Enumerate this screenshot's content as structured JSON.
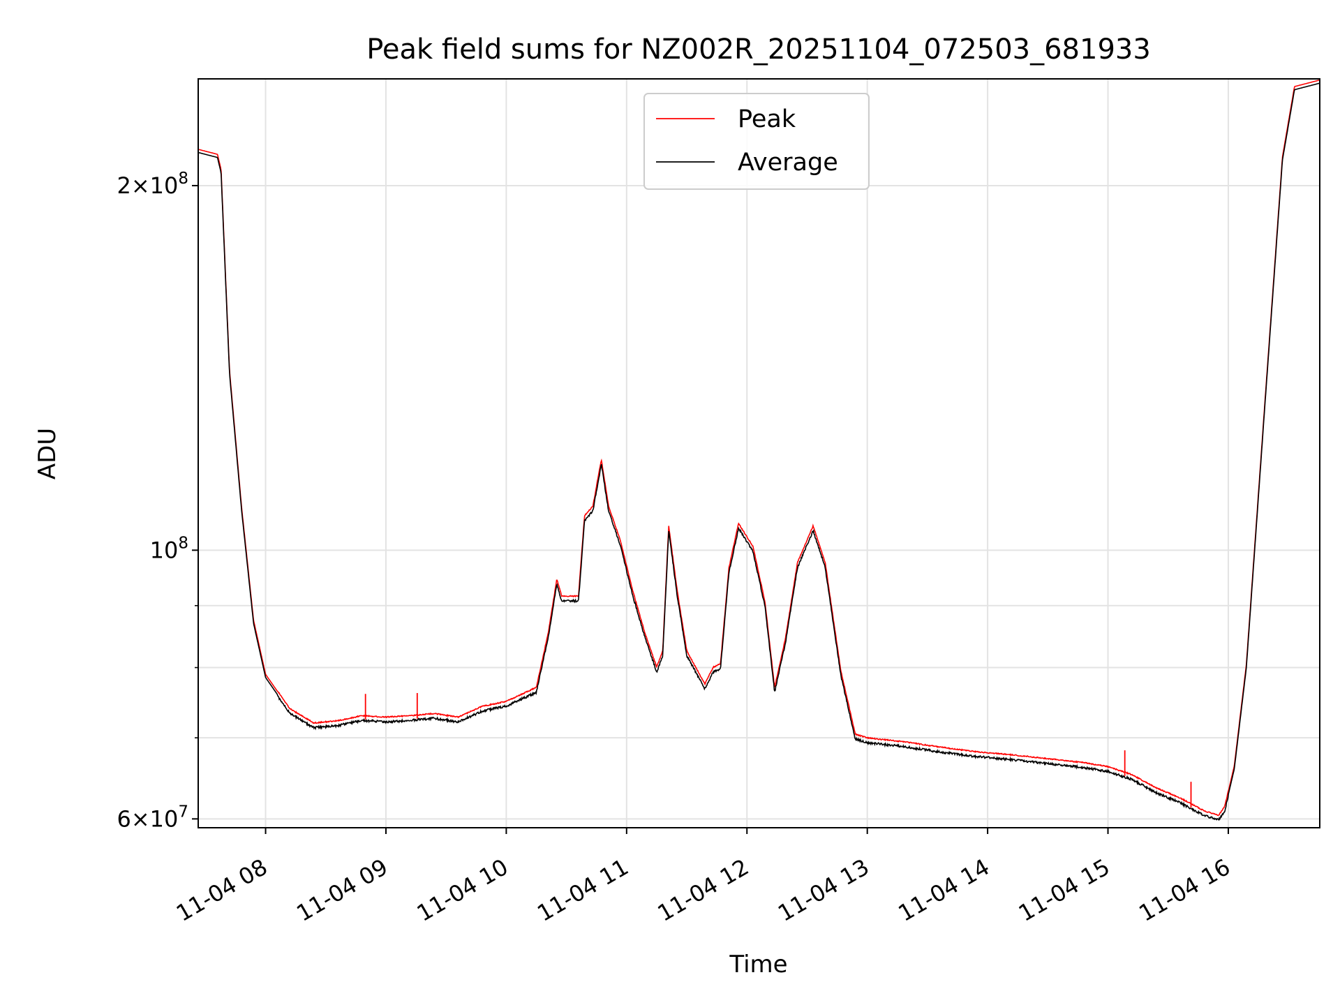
{
  "chart_data": {
    "type": "line",
    "title": "Peak field sums for NZ002R_20251104_072503_681933",
    "xlabel": "Time",
    "ylabel": "ADU",
    "yscale": "log",
    "xlim_hours": [
      7.44,
      16.76
    ],
    "ylim": [
      59000000,
      245000000
    ],
    "grid": true,
    "legend_position": "upper center",
    "x_ticks": [
      {
        "hour": 8,
        "label": "11-04 08"
      },
      {
        "hour": 9,
        "label": "11-04 09"
      },
      {
        "hour": 10,
        "label": "11-04 10"
      },
      {
        "hour": 11,
        "label": "11-04 11"
      },
      {
        "hour": 12,
        "label": "11-04 12"
      },
      {
        "hour": 13,
        "label": "11-04 13"
      },
      {
        "hour": 14,
        "label": "11-04 14"
      },
      {
        "hour": 15,
        "label": "11-04 15"
      },
      {
        "hour": 16,
        "label": "11-04 16"
      }
    ],
    "y_major_ticks": [
      {
        "value": 60000000,
        "mantissa": "6",
        "exponent": "7"
      },
      {
        "value": 100000000,
        "mantissa": "",
        "exponent": "8"
      },
      {
        "value": 200000000,
        "mantissa": "2",
        "exponent": "8"
      }
    ],
    "y_minor_ticks": [
      70000000,
      80000000,
      90000000
    ],
    "series": [
      {
        "name": "Peak",
        "color": "#ff0000"
      },
      {
        "name": "Average",
        "color": "#000000"
      }
    ],
    "average_points": [
      [
        7.44,
        213000000
      ],
      [
        7.6,
        211000000
      ],
      [
        7.63,
        205000000
      ],
      [
        7.7,
        140000000
      ],
      [
        7.8,
        108000000
      ],
      [
        7.9,
        87000000
      ],
      [
        8.0,
        78500000
      ],
      [
        8.2,
        73500000
      ],
      [
        8.4,
        71500000
      ],
      [
        8.6,
        71800000
      ],
      [
        8.8,
        72500000
      ],
      [
        9.0,
        72300000
      ],
      [
        9.2,
        72500000
      ],
      [
        9.4,
        72800000
      ],
      [
        9.6,
        72300000
      ],
      [
        9.8,
        73800000
      ],
      [
        10.0,
        74500000
      ],
      [
        10.25,
        76500000
      ],
      [
        10.35,
        85000000
      ],
      [
        10.42,
        94000000
      ],
      [
        10.46,
        91000000
      ],
      [
        10.6,
        91000000
      ],
      [
        10.65,
        106000000
      ],
      [
        10.72,
        108000000
      ],
      [
        10.79,
        118000000
      ],
      [
        10.85,
        108000000
      ],
      [
        10.95,
        101000000
      ],
      [
        11.05,
        92000000
      ],
      [
        11.15,
        85000000
      ],
      [
        11.25,
        79500000
      ],
      [
        11.3,
        82000000
      ],
      [
        11.35,
        104000000
      ],
      [
        11.42,
        92000000
      ],
      [
        11.5,
        82000000
      ],
      [
        11.65,
        77000000
      ],
      [
        11.72,
        79500000
      ],
      [
        11.78,
        80000000
      ],
      [
        11.85,
        96000000
      ],
      [
        11.93,
        104500000
      ],
      [
        12.05,
        100000000
      ],
      [
        12.15,
        90000000
      ],
      [
        12.23,
        76500000
      ],
      [
        12.32,
        84000000
      ],
      [
        12.42,
        97000000
      ],
      [
        12.55,
        104000000
      ],
      [
        12.65,
        97000000
      ],
      [
        12.78,
        79000000
      ],
      [
        12.9,
        70000000
      ],
      [
        13.0,
        69500000
      ],
      [
        13.3,
        69000000
      ],
      [
        13.6,
        68300000
      ],
      [
        13.9,
        67700000
      ],
      [
        14.2,
        67300000
      ],
      [
        14.5,
        66800000
      ],
      [
        14.8,
        66300000
      ],
      [
        15.0,
        65800000
      ],
      [
        15.2,
        64800000
      ],
      [
        15.4,
        63200000
      ],
      [
        15.6,
        62000000
      ],
      [
        15.8,
        60500000
      ],
      [
        15.92,
        60000000
      ],
      [
        15.97,
        61000000
      ],
      [
        16.05,
        66000000
      ],
      [
        16.15,
        80000000
      ],
      [
        16.3,
        130000000
      ],
      [
        16.45,
        210000000
      ],
      [
        16.55,
        240000000
      ],
      [
        16.76,
        243000000
      ]
    ]
  }
}
